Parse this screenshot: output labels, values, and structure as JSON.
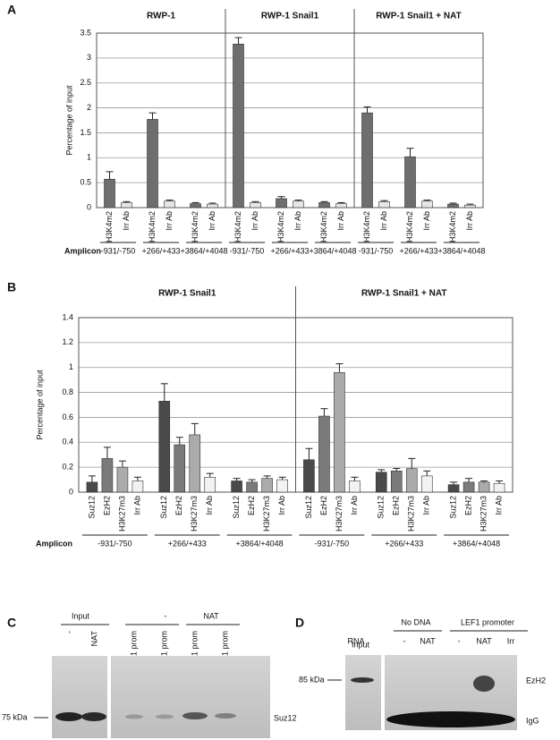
{
  "chart_data": [
    {
      "type": "bar",
      "panel": "A",
      "ylabel": "Percentage of input",
      "xlabel": "Amplicon",
      "groups": [
        "RWP-1",
        "RWP-1 Snail1",
        "RWP-1 Snail1 + NAT"
      ],
      "amplicons": [
        "-931/-750",
        "+266/+433",
        "+3864/+4048"
      ],
      "ylim": [
        0,
        3.5
      ],
      "yticks": [
        0,
        0.5,
        1,
        1.5,
        2,
        2.5,
        3,
        3.5
      ],
      "grid": true,
      "series": [
        {
          "name": "H3K4m2",
          "color": "#6e6e6e",
          "values": [
            0.57,
            1.77,
            0.08,
            3.28,
            0.18,
            0.1,
            1.9,
            1.02,
            0.07
          ],
          "errors": [
            0.15,
            0.13,
            0.02,
            0.13,
            0.04,
            0.02,
            0.12,
            0.17,
            0.02
          ]
        },
        {
          "name": "Irr Ab",
          "color": "#e6e6e6",
          "values": [
            0.1,
            0.13,
            0.07,
            0.1,
            0.13,
            0.08,
            0.12,
            0.13,
            0.05
          ],
          "errors": [
            0.02,
            0.02,
            0.02,
            0.02,
            0.02,
            0.02,
            0.02,
            0.02,
            0.02
          ]
        }
      ]
    },
    {
      "type": "bar",
      "panel": "B",
      "ylabel": "Percentage of input",
      "xlabel": "Amplicon",
      "groups": [
        "RWP-1 Snail1",
        "RWP-1 Snail1 + NAT"
      ],
      "amplicons": [
        "-931/-750",
        "+266/+433",
        "+3864/+4048"
      ],
      "ylim": [
        0,
        1.4
      ],
      "yticks": [
        0,
        0.2,
        0.4,
        0.6,
        0.8,
        1,
        1.2,
        1.4
      ],
      "grid": true,
      "series": [
        {
          "name": "Suz12",
          "color": "#4a4a4a",
          "values": [
            0.08,
            0.73,
            0.09,
            0.26,
            0.16,
            0.06
          ],
          "errors": [
            0.05,
            0.14,
            0.02,
            0.09,
            0.02,
            0.02
          ]
        },
        {
          "name": "EzH2",
          "color": "#7a7a7a",
          "values": [
            0.27,
            0.38,
            0.08,
            0.61,
            0.17,
            0.08
          ],
          "errors": [
            0.09,
            0.06,
            0.02,
            0.06,
            0.02,
            0.03
          ]
        },
        {
          "name": "H3K27m3",
          "color": "#ababab",
          "values": [
            0.2,
            0.46,
            0.11,
            0.96,
            0.19,
            0.08
          ],
          "errors": [
            0.05,
            0.09,
            0.02,
            0.07,
            0.08,
            0.01
          ]
        },
        {
          "name": "Irr Ab",
          "color": "#f2f2f2",
          "values": [
            0.09,
            0.12,
            0.1,
            0.09,
            0.13,
            0.07
          ],
          "errors": [
            0.03,
            0.03,
            0.02,
            0.03,
            0.04,
            0.02
          ]
        }
      ]
    }
  ],
  "blot_c": {
    "panel": "C",
    "headers": [
      "Input",
      "-",
      "NAT"
    ],
    "lanes": [
      "-",
      "NAT",
      "LEF1 prom",
      "FN1 prom",
      "LEF1 prom",
      "FN1 prom"
    ],
    "marker": "75 kDa",
    "band": "Suz12"
  },
  "blot_d": {
    "panel": "D",
    "input": "Input",
    "headers": [
      "No DNA",
      "LEF1 promoter"
    ],
    "row_label": "RNA",
    "lanes": [
      "-",
      "NAT",
      "-",
      "NAT",
      "Irr"
    ],
    "marker": "85 kDa",
    "bands": [
      "EzH2",
      "IgG"
    ]
  }
}
